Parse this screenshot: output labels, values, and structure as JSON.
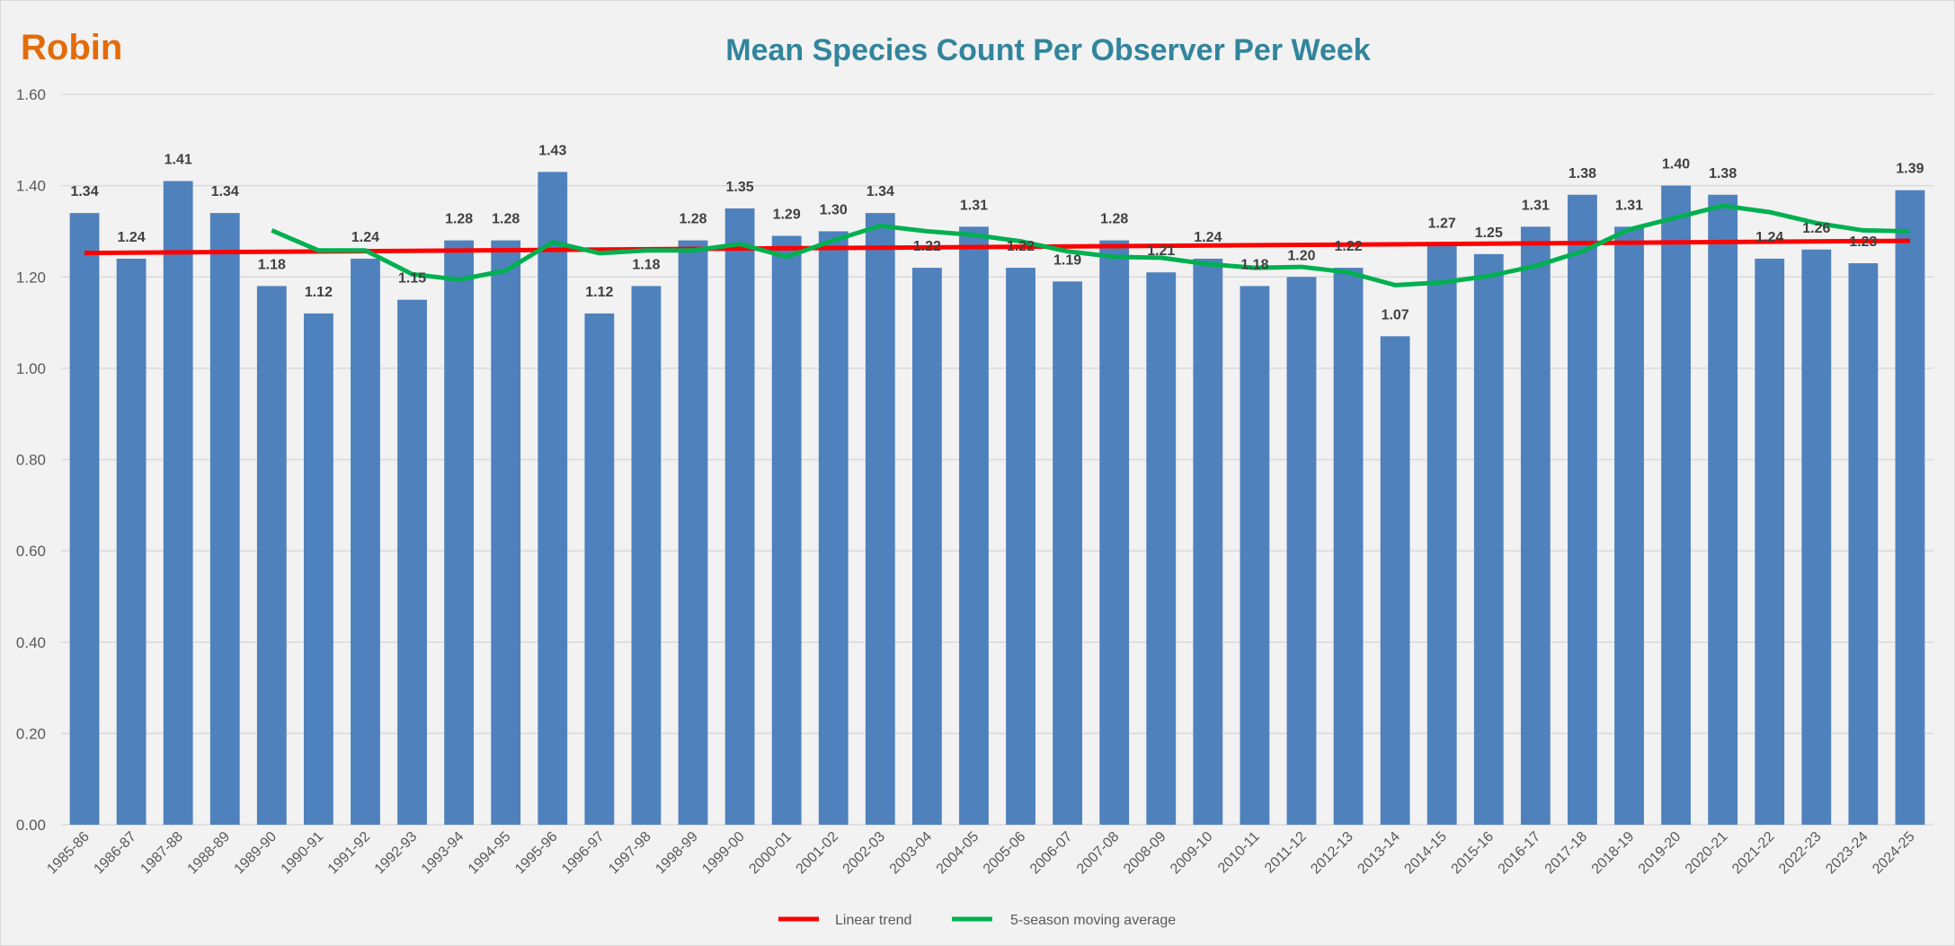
{
  "chart_data": {
    "type": "bar",
    "species": "Robin",
    "title": "Mean Species Count Per Observer Per Week",
    "xlabel": "",
    "ylabel": "",
    "ylim": [
      0,
      1.6
    ],
    "yticks": [
      "0.00",
      "0.20",
      "0.40",
      "0.60",
      "0.80",
      "1.00",
      "1.20",
      "1.40",
      "1.60"
    ],
    "grid": true,
    "legend_position": "bottom",
    "categories": [
      "1985-86",
      "1986-87",
      "1987-88",
      "1988-89",
      "1989-90",
      "1990-91",
      "1991-92",
      "1992-93",
      "1993-94",
      "1994-95",
      "1995-96",
      "1996-97",
      "1997-98",
      "1998-99",
      "1999-00",
      "2000-01",
      "2001-02",
      "2002-03",
      "2003-04",
      "2004-05",
      "2005-06",
      "2006-07",
      "2007-08",
      "2008-09",
      "2009-10",
      "2010-11",
      "2011-12",
      "2012-13",
      "2013-14",
      "2014-15",
      "2015-16",
      "2016-17",
      "2017-18",
      "2018-19",
      "2019-20",
      "2020-21",
      "2021-22",
      "2022-23",
      "2023-24",
      "2024-25"
    ],
    "values": [
      1.34,
      1.24,
      1.41,
      1.34,
      1.18,
      1.12,
      1.24,
      1.15,
      1.28,
      1.28,
      1.43,
      1.12,
      1.18,
      1.28,
      1.35,
      1.29,
      1.3,
      1.34,
      1.22,
      1.31,
      1.22,
      1.19,
      1.28,
      1.21,
      1.24,
      1.18,
      1.2,
      1.22,
      1.07,
      1.27,
      1.25,
      1.31,
      1.38,
      1.31,
      1.4,
      1.38,
      1.24,
      1.26,
      1.23,
      1.39
    ],
    "series": [
      {
        "name": "Linear trend",
        "kind": "linear-trend",
        "color": "#ff0000"
      },
      {
        "name": "5-season moving average",
        "kind": "moving-average",
        "window": 5,
        "color": "#00b050"
      }
    ],
    "bar_color": "#4f81bd"
  }
}
